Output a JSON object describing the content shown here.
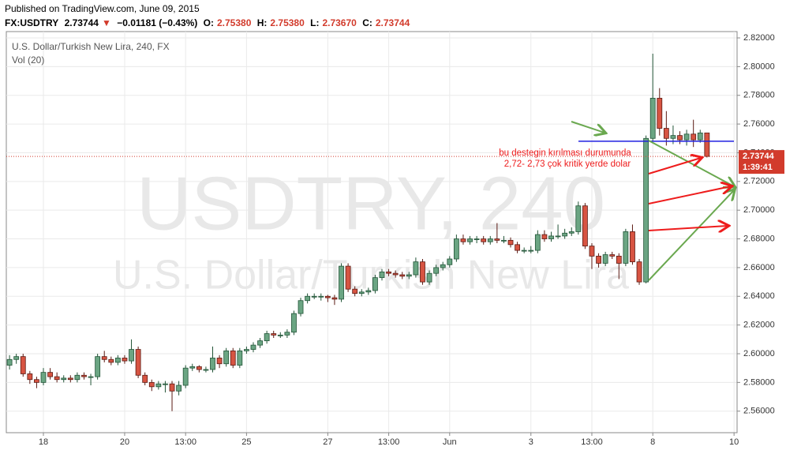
{
  "header": {
    "published": "Published on TradingView.com, June 09, 2015",
    "symbol": "FX:USDTRY",
    "last": "2.73744",
    "arrow": "▼",
    "change": "−0.01181 (−0.43%)",
    "ohlc": [
      {
        "key": "O:",
        "text": "2.75380"
      },
      {
        "key": "H:",
        "text": "2.75380"
      },
      {
        "key": "L:",
        "text": "2.73670"
      },
      {
        "key": "C:",
        "text": "2.73744"
      }
    ]
  },
  "chart_data": {
    "type": "candlestick",
    "title": "U.S. Dollar/Turkish New Lira, 240, FX",
    "subtitle": "Vol (20)",
    "watermark": [
      "USDTRY, 240",
      "U.S. Dollar/Turkish New Lira"
    ],
    "categories": [
      null,
      null,
      null,
      null,
      null,
      "18",
      null,
      null,
      null,
      null,
      null,
      null,
      null,
      null,
      null,
      null,
      null,
      "20",
      null,
      null,
      null,
      null,
      null,
      null,
      null,
      null,
      "13:00",
      null,
      null,
      null,
      null,
      null,
      null,
      null,
      null,
      "25",
      null,
      null,
      null,
      null,
      null,
      null,
      null,
      null,
      null,
      null,
      null,
      "27",
      null,
      null,
      null,
      null,
      null,
      null,
      null,
      null,
      "13:00",
      null,
      null,
      null,
      null,
      null,
      null,
      null,
      null,
      "Jun",
      null,
      null,
      null,
      null,
      null,
      null,
      null,
      null,
      null,
      null,
      null,
      "3",
      null,
      null,
      null,
      null,
      null,
      null,
      null,
      null,
      "13:00",
      null,
      null,
      null,
      null,
      null,
      null,
      null,
      null,
      "8",
      null,
      null,
      null,
      null,
      null,
      null,
      null,
      null,
      null,
      null,
      null,
      "10"
    ],
    "open": [
      2.592,
      2.596,
      2.598,
      2.586,
      2.582,
      2.58,
      2.587,
      2.584,
      2.582,
      2.583,
      2.582,
      2.585,
      2.584,
      2.584,
      2.598,
      2.596,
      2.594,
      2.597,
      2.595,
      2.603,
      2.585,
      2.58,
      2.577,
      2.579,
      2.579,
      2.574,
      2.578,
      2.59,
      2.591,
      2.589,
      2.589,
      2.597,
      2.593,
      2.602,
      2.592,
      2.602,
      2.603,
      2.606,
      2.609,
      2.614,
      2.613,
      2.613,
      2.615,
      2.628,
      2.637,
      2.64,
      2.64,
      2.64,
      2.639,
      2.638,
      2.661,
      2.645,
      2.642,
      2.643,
      2.644,
      2.653,
      2.657,
      2.656,
      2.655,
      2.654,
      2.655,
      2.664,
      2.65,
      2.656,
      2.66,
      2.662,
      2.666,
      2.68,
      2.678,
      2.68,
      2.68,
      2.678,
      2.68,
      2.679,
      2.679,
      2.676,
      2.672,
      2.672,
      2.672,
      2.683,
      2.68,
      2.682,
      2.682,
      2.684,
      2.685,
      2.703,
      2.675,
      2.668,
      2.663,
      2.669,
      2.668,
      2.663,
      2.685,
      2.664,
      2.65,
      2.75,
      2.778,
      2.757,
      2.75,
      2.752,
      2.749,
      2.753,
      2.749,
      2.7538,
      null,
      null,
      null,
      null
    ],
    "high": [
      2.599,
      2.6,
      2.6,
      2.588,
      2.584,
      2.59,
      2.59,
      2.587,
      2.585,
      2.585,
      2.587,
      2.587,
      2.586,
      2.6,
      2.602,
      2.598,
      2.599,
      2.599,
      2.61,
      2.605,
      2.587,
      2.582,
      2.581,
      2.581,
      2.581,
      2.581,
      2.592,
      2.593,
      2.592,
      2.591,
      2.605,
      2.599,
      2.604,
      2.604,
      2.604,
      2.605,
      2.608,
      2.611,
      2.616,
      2.616,
      2.615,
      2.617,
      2.63,
      2.639,
      2.642,
      2.642,
      2.642,
      2.641,
      2.641,
      2.663,
      2.663,
      2.647,
      2.645,
      2.646,
      2.655,
      2.659,
      2.659,
      2.658,
      2.657,
      2.657,
      2.667,
      2.666,
      2.658,
      2.662,
      2.664,
      2.668,
      2.683,
      2.683,
      2.682,
      2.682,
      2.682,
      2.682,
      2.691,
      2.682,
      2.681,
      2.678,
      2.674,
      2.675,
      2.686,
      2.686,
      2.685,
      2.69,
      2.687,
      2.688,
      2.706,
      2.705,
      2.677,
      2.67,
      2.671,
      2.671,
      2.67,
      2.687,
      2.69,
      2.666,
      2.752,
      2.809,
      2.785,
      2.769,
      2.759,
      2.755,
      2.756,
      2.763,
      2.756,
      2.7538,
      null,
      null,
      null,
      null
    ],
    "low": [
      2.589,
      2.593,
      2.584,
      2.579,
      2.576,
      2.578,
      2.582,
      2.58,
      2.58,
      2.58,
      2.58,
      2.582,
      2.578,
      2.582,
      2.594,
      2.592,
      2.592,
      2.593,
      2.593,
      2.583,
      2.578,
      2.574,
      2.575,
      2.573,
      2.56,
      2.571,
      2.576,
      2.588,
      2.587,
      2.587,
      2.587,
      2.59,
      2.591,
      2.59,
      2.59,
      2.6,
      2.601,
      2.604,
      2.607,
      2.611,
      2.611,
      2.611,
      2.613,
      2.626,
      2.635,
      2.638,
      2.637,
      2.636,
      2.634,
      2.636,
      2.643,
      2.64,
      2.64,
      2.641,
      2.642,
      2.651,
      2.654,
      2.653,
      2.652,
      2.652,
      2.653,
      2.648,
      2.648,
      2.654,
      2.658,
      2.66,
      2.664,
      2.676,
      2.676,
      2.677,
      2.676,
      2.676,
      2.677,
      2.677,
      2.674,
      2.67,
      2.67,
      2.67,
      2.67,
      2.678,
      2.678,
      2.68,
      2.68,
      2.682,
      2.683,
      2.673,
      2.659,
      2.66,
      2.661,
      2.666,
      2.652,
      2.661,
      2.662,
      2.648,
      2.649,
      2.748,
      2.752,
      2.745,
      2.746,
      2.746,
      2.745,
      2.744,
      2.747,
      2.7367,
      null,
      null,
      null,
      null
    ],
    "close": [
      2.596,
      2.598,
      2.586,
      2.582,
      2.58,
      2.587,
      2.584,
      2.582,
      2.583,
      2.582,
      2.585,
      2.584,
      2.584,
      2.598,
      2.596,
      2.594,
      2.597,
      2.595,
      2.603,
      2.585,
      2.58,
      2.577,
      2.579,
      2.579,
      2.574,
      2.578,
      2.59,
      2.591,
      2.589,
      2.589,
      2.597,
      2.593,
      2.602,
      2.592,
      2.602,
      2.603,
      2.606,
      2.609,
      2.614,
      2.613,
      2.613,
      2.615,
      2.628,
      2.637,
      2.64,
      2.64,
      2.64,
      2.639,
      2.638,
      2.661,
      2.645,
      2.642,
      2.643,
      2.644,
      2.653,
      2.657,
      2.656,
      2.655,
      2.654,
      2.655,
      2.664,
      2.65,
      2.656,
      2.66,
      2.662,
      2.666,
      2.68,
      2.678,
      2.68,
      2.68,
      2.678,
      2.68,
      2.679,
      2.679,
      2.676,
      2.672,
      2.672,
      2.672,
      2.683,
      2.68,
      2.682,
      2.682,
      2.684,
      2.685,
      2.703,
      2.675,
      2.668,
      2.663,
      2.669,
      2.668,
      2.663,
      2.685,
      2.664,
      2.65,
      2.75,
      2.778,
      2.757,
      2.75,
      2.752,
      2.749,
      2.753,
      2.749,
      2.7538,
      2.73744,
      null,
      null,
      null,
      null
    ],
    "up_color": "#6ba583",
    "down_color": "#d75442",
    "ylim": [
      2.545,
      2.8244
    ],
    "yticks": [
      {
        "value": 2.56,
        "label": "2.56000"
      },
      {
        "value": 2.58,
        "label": "2.58000"
      },
      {
        "value": 2.6,
        "label": "2.60000"
      },
      {
        "value": 2.62,
        "label": "2.62000"
      },
      {
        "value": 2.64,
        "label": "2.64000"
      },
      {
        "value": 2.66,
        "label": "2.66000"
      },
      {
        "value": 2.68,
        "label": "2.68000"
      },
      {
        "value": 2.7,
        "label": "2.70000"
      },
      {
        "value": 2.72,
        "label": "2.72000"
      },
      {
        "value": 2.74,
        "label": "2.74000"
      },
      {
        "value": 2.76,
        "label": "2.76000"
      },
      {
        "value": 2.78,
        "label": "2.78000"
      },
      {
        "value": 2.8,
        "label": "2.80000"
      },
      {
        "value": 2.82,
        "label": "2.82000"
      }
    ],
    "grid": true,
    "last_price": {
      "value": 2.73744,
      "label": "2.73744",
      "color": "#d23b2c"
    },
    "countdown": "1:39:41",
    "support_line": {
      "value": 2.748,
      "color": "#2020e0"
    },
    "annotation": [
      "bu destegin kırılması durumunda",
      "2,72- 2,73 çok kritik yerde dolar"
    ]
  }
}
